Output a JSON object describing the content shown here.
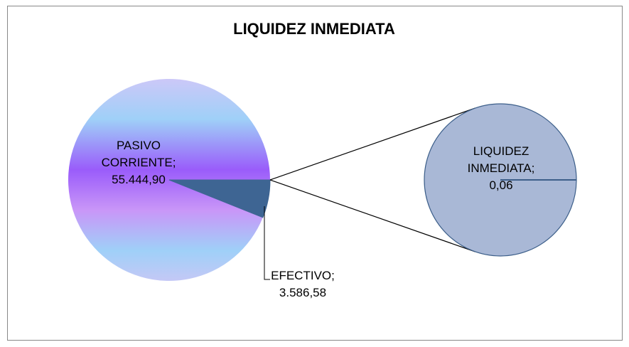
{
  "chart_data": {
    "type": "pie-of-pie",
    "title": "LIQUIDEZ INMEDIATA",
    "label_separator": ";",
    "categories": [
      "PASIVO CORRIENTE",
      "EFECTIVO"
    ],
    "values": [
      55444.9,
      3586.58
    ],
    "value_labels": [
      "55.444,90",
      "3.586,58"
    ],
    "colors": [
      "url(#mainGrad)",
      "#3e6593"
    ],
    "secondary": {
      "categories": [
        "LIQUIDEZ INMEDIATA"
      ],
      "values": [
        0.06
      ],
      "value_labels": [
        "0,06"
      ],
      "colors": [
        "#a9b8d6"
      ]
    }
  }
}
